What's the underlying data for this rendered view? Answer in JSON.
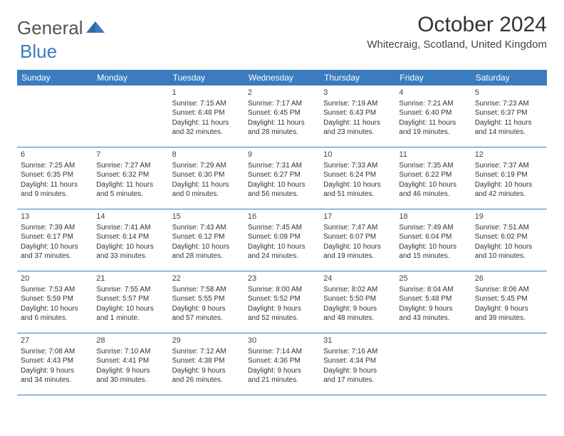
{
  "brand": {
    "part1": "General",
    "part2": "Blue"
  },
  "title": "October 2024",
  "location": "Whitecraig, Scotland, United Kingdom",
  "colors": {
    "header_bg": "#3b7bbf",
    "header_text": "#ffffff",
    "border": "#3b7bbf",
    "text": "#333333",
    "background": "#ffffff"
  },
  "day_names": [
    "Sunday",
    "Monday",
    "Tuesday",
    "Wednesday",
    "Thursday",
    "Friday",
    "Saturday"
  ],
  "weeks": [
    [
      null,
      null,
      {
        "n": "1",
        "sr": "Sunrise: 7:15 AM",
        "ss": "Sunset: 6:48 PM",
        "d1": "Daylight: 11 hours",
        "d2": "and 32 minutes."
      },
      {
        "n": "2",
        "sr": "Sunrise: 7:17 AM",
        "ss": "Sunset: 6:45 PM",
        "d1": "Daylight: 11 hours",
        "d2": "and 28 minutes."
      },
      {
        "n": "3",
        "sr": "Sunrise: 7:19 AM",
        "ss": "Sunset: 6:43 PM",
        "d1": "Daylight: 11 hours",
        "d2": "and 23 minutes."
      },
      {
        "n": "4",
        "sr": "Sunrise: 7:21 AM",
        "ss": "Sunset: 6:40 PM",
        "d1": "Daylight: 11 hours",
        "d2": "and 19 minutes."
      },
      {
        "n": "5",
        "sr": "Sunrise: 7:23 AM",
        "ss": "Sunset: 6:37 PM",
        "d1": "Daylight: 11 hours",
        "d2": "and 14 minutes."
      }
    ],
    [
      {
        "n": "6",
        "sr": "Sunrise: 7:25 AM",
        "ss": "Sunset: 6:35 PM",
        "d1": "Daylight: 11 hours",
        "d2": "and 9 minutes."
      },
      {
        "n": "7",
        "sr": "Sunrise: 7:27 AM",
        "ss": "Sunset: 6:32 PM",
        "d1": "Daylight: 11 hours",
        "d2": "and 5 minutes."
      },
      {
        "n": "8",
        "sr": "Sunrise: 7:29 AM",
        "ss": "Sunset: 6:30 PM",
        "d1": "Daylight: 11 hours",
        "d2": "and 0 minutes."
      },
      {
        "n": "9",
        "sr": "Sunrise: 7:31 AM",
        "ss": "Sunset: 6:27 PM",
        "d1": "Daylight: 10 hours",
        "d2": "and 56 minutes."
      },
      {
        "n": "10",
        "sr": "Sunrise: 7:33 AM",
        "ss": "Sunset: 6:24 PM",
        "d1": "Daylight: 10 hours",
        "d2": "and 51 minutes."
      },
      {
        "n": "11",
        "sr": "Sunrise: 7:35 AM",
        "ss": "Sunset: 6:22 PM",
        "d1": "Daylight: 10 hours",
        "d2": "and 46 minutes."
      },
      {
        "n": "12",
        "sr": "Sunrise: 7:37 AM",
        "ss": "Sunset: 6:19 PM",
        "d1": "Daylight: 10 hours",
        "d2": "and 42 minutes."
      }
    ],
    [
      {
        "n": "13",
        "sr": "Sunrise: 7:39 AM",
        "ss": "Sunset: 6:17 PM",
        "d1": "Daylight: 10 hours",
        "d2": "and 37 minutes."
      },
      {
        "n": "14",
        "sr": "Sunrise: 7:41 AM",
        "ss": "Sunset: 6:14 PM",
        "d1": "Daylight: 10 hours",
        "d2": "and 33 minutes."
      },
      {
        "n": "15",
        "sr": "Sunrise: 7:43 AM",
        "ss": "Sunset: 6:12 PM",
        "d1": "Daylight: 10 hours",
        "d2": "and 28 minutes."
      },
      {
        "n": "16",
        "sr": "Sunrise: 7:45 AM",
        "ss": "Sunset: 6:09 PM",
        "d1": "Daylight: 10 hours",
        "d2": "and 24 minutes."
      },
      {
        "n": "17",
        "sr": "Sunrise: 7:47 AM",
        "ss": "Sunset: 6:07 PM",
        "d1": "Daylight: 10 hours",
        "d2": "and 19 minutes."
      },
      {
        "n": "18",
        "sr": "Sunrise: 7:49 AM",
        "ss": "Sunset: 6:04 PM",
        "d1": "Daylight: 10 hours",
        "d2": "and 15 minutes."
      },
      {
        "n": "19",
        "sr": "Sunrise: 7:51 AM",
        "ss": "Sunset: 6:02 PM",
        "d1": "Daylight: 10 hours",
        "d2": "and 10 minutes."
      }
    ],
    [
      {
        "n": "20",
        "sr": "Sunrise: 7:53 AM",
        "ss": "Sunset: 5:59 PM",
        "d1": "Daylight: 10 hours",
        "d2": "and 6 minutes."
      },
      {
        "n": "21",
        "sr": "Sunrise: 7:55 AM",
        "ss": "Sunset: 5:57 PM",
        "d1": "Daylight: 10 hours",
        "d2": "and 1 minute."
      },
      {
        "n": "22",
        "sr": "Sunrise: 7:58 AM",
        "ss": "Sunset: 5:55 PM",
        "d1": "Daylight: 9 hours",
        "d2": "and 57 minutes."
      },
      {
        "n": "23",
        "sr": "Sunrise: 8:00 AM",
        "ss": "Sunset: 5:52 PM",
        "d1": "Daylight: 9 hours",
        "d2": "and 52 minutes."
      },
      {
        "n": "24",
        "sr": "Sunrise: 8:02 AM",
        "ss": "Sunset: 5:50 PM",
        "d1": "Daylight: 9 hours",
        "d2": "and 48 minutes."
      },
      {
        "n": "25",
        "sr": "Sunrise: 8:04 AM",
        "ss": "Sunset: 5:48 PM",
        "d1": "Daylight: 9 hours",
        "d2": "and 43 minutes."
      },
      {
        "n": "26",
        "sr": "Sunrise: 8:06 AM",
        "ss": "Sunset: 5:45 PM",
        "d1": "Daylight: 9 hours",
        "d2": "and 39 minutes."
      }
    ],
    [
      {
        "n": "27",
        "sr": "Sunrise: 7:08 AM",
        "ss": "Sunset: 4:43 PM",
        "d1": "Daylight: 9 hours",
        "d2": "and 34 minutes."
      },
      {
        "n": "28",
        "sr": "Sunrise: 7:10 AM",
        "ss": "Sunset: 4:41 PM",
        "d1": "Daylight: 9 hours",
        "d2": "and 30 minutes."
      },
      {
        "n": "29",
        "sr": "Sunrise: 7:12 AM",
        "ss": "Sunset: 4:38 PM",
        "d1": "Daylight: 9 hours",
        "d2": "and 26 minutes."
      },
      {
        "n": "30",
        "sr": "Sunrise: 7:14 AM",
        "ss": "Sunset: 4:36 PM",
        "d1": "Daylight: 9 hours",
        "d2": "and 21 minutes."
      },
      {
        "n": "31",
        "sr": "Sunrise: 7:16 AM",
        "ss": "Sunset: 4:34 PM",
        "d1": "Daylight: 9 hours",
        "d2": "and 17 minutes."
      },
      null,
      null
    ]
  ]
}
